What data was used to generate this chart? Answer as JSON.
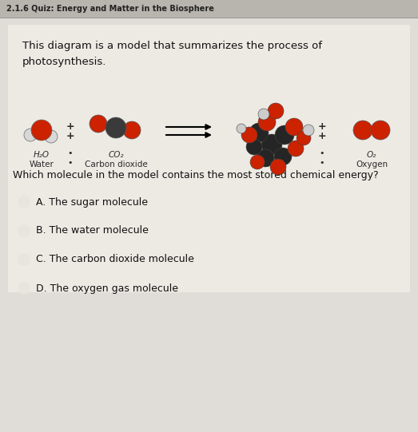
{
  "header_text": "2.1.6 Quiz: Energy and Matter in the Biosphere",
  "body_bg": "#e8e6e2",
  "diagram_bg": "#f0eeea",
  "intro_text_line1": "This diagram is a model that summarizes the process of",
  "intro_text_line2": "photosynthesis.",
  "question_text": "Which molecule in the model contains the most stored chemical energy?",
  "choices": [
    "A. The sugar molecule",
    "B. The water molecule",
    "C. The carbon dioxide molecule",
    "D. The oxygen gas molecule"
  ],
  "red_color": "#cc2200",
  "dark_color": "#2a2a2a",
  "white_color": "#d8d8d8",
  "text_color": "#111111",
  "header_font_color": "#333333",
  "header_bg": "#d0ccc6"
}
